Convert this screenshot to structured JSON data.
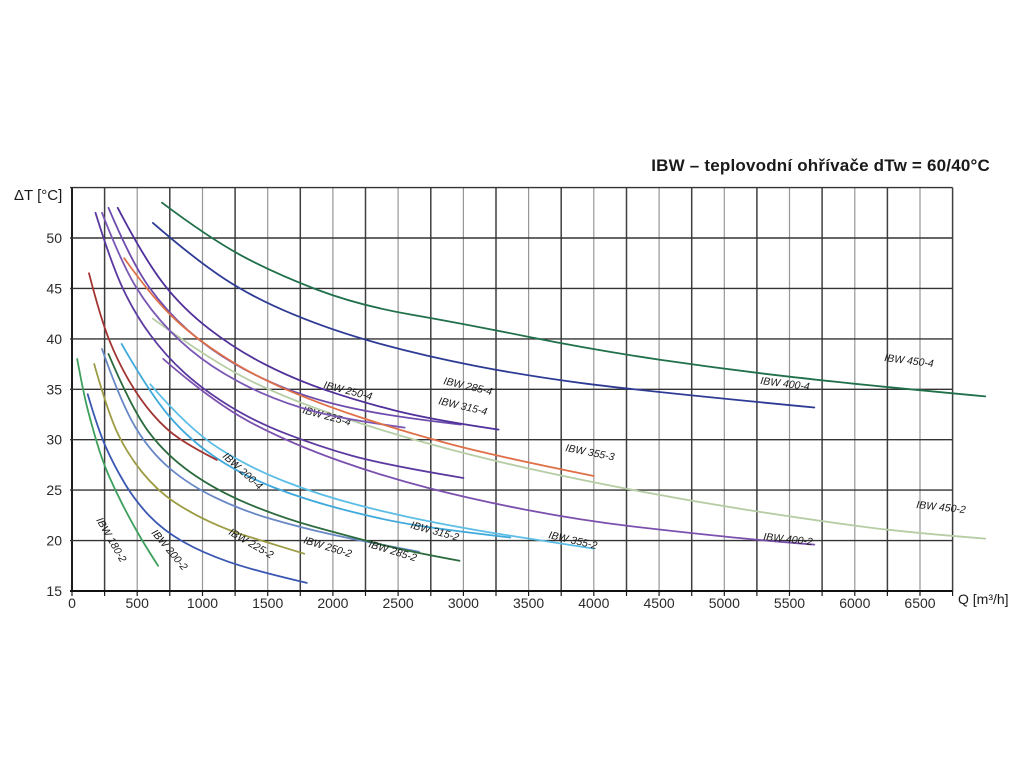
{
  "title": "IBW – teplovodní ohřívače dTw = 60/40°C",
  "y_axis_label": "ΔT [°C]",
  "x_axis_label": "Q [m³/h]",
  "chart_data": {
    "type": "line",
    "title": "IBW – teplovodní ohřívače dTw = 60/40°C",
    "xlabel": "Q [m³/h]",
    "ylabel": "ΔT [°C]",
    "xlim": [
      0,
      6750
    ],
    "ylim": [
      15,
      55
    ],
    "x_ticks": [
      0,
      500,
      1000,
      1500,
      2000,
      2500,
      3000,
      3500,
      4000,
      4500,
      5000,
      5500,
      6000,
      6500
    ],
    "y_ticks": [
      15,
      20,
      25,
      30,
      35,
      40,
      45,
      50
    ],
    "grid": {
      "on": true,
      "minor_step_x": 250,
      "step_y": 5,
      "axis_color": "#1c1c1c",
      "dark_line_color": "#3f3f3f",
      "light_line_color": "#979797"
    },
    "legend_position": "inline-labels",
    "series": [
      {
        "name": "IBW 180-2",
        "color": "#3EA05D",
        "label_pos": [
          96,
          520,
          60
        ],
        "points": [
          [
            40,
            38
          ],
          [
            90,
            34.5
          ],
          [
            150,
            31.5
          ],
          [
            230,
            28
          ],
          [
            330,
            25
          ],
          [
            450,
            22
          ],
          [
            560,
            19.5
          ],
          [
            660,
            17.5
          ]
        ]
      },
      {
        "name": "IBW 200-2",
        "color": "#3A57B2",
        "label_pos": [
          151,
          533,
          50
        ],
        "points": [
          [
            120,
            34.5
          ],
          [
            200,
            31
          ],
          [
            320,
            27.5
          ],
          [
            480,
            24
          ],
          [
            700,
            21
          ],
          [
            1000,
            18.8
          ],
          [
            1400,
            17
          ],
          [
            1800,
            15.8
          ]
        ]
      },
      {
        "name": "IBW 225-2",
        "color": "#9C9C44",
        "label_pos": [
          228,
          534,
          30
        ],
        "points": [
          [
            170,
            37.5
          ],
          [
            280,
            32.5
          ],
          [
            430,
            28.5
          ],
          [
            650,
            25
          ],
          [
            900,
            22.8
          ],
          [
            1200,
            21
          ],
          [
            1500,
            19.8
          ],
          [
            1780,
            18.7
          ]
        ]
      },
      {
        "name": "IBW 250-2",
        "color": "#6787C5",
        "label_pos": [
          303,
          543,
          17
        ],
        "points": [
          [
            230,
            39
          ],
          [
            380,
            33.5
          ],
          [
            600,
            28.8
          ],
          [
            900,
            25.5
          ],
          [
            1300,
            23
          ],
          [
            1750,
            21.3
          ],
          [
            2200,
            20
          ],
          [
            2660,
            18.9
          ]
        ]
      },
      {
        "name": "IBW 285-2",
        "color": "#2B6B3E",
        "label_pos": [
          368,
          547,
          17
        ],
        "points": [
          [
            280,
            38.5
          ],
          [
            460,
            33
          ],
          [
            720,
            28.5
          ],
          [
            1100,
            25
          ],
          [
            1600,
            22.3
          ],
          [
            2100,
            20.5
          ],
          [
            2550,
            19
          ],
          [
            2970,
            18
          ]
        ]
      },
      {
        "name": "IBW 315-2",
        "color": "#3FA9DC",
        "label_pos": [
          410,
          528,
          15
        ],
        "points": [
          [
            380,
            39.5
          ],
          [
            600,
            34.5
          ],
          [
            900,
            30
          ],
          [
            1300,
            26.5
          ],
          [
            1800,
            24
          ],
          [
            2400,
            22
          ],
          [
            2900,
            21
          ],
          [
            3360,
            20.3
          ]
        ]
      },
      {
        "name": "IBW 355-2",
        "color": "#5CBEE6",
        "label_pos": [
          548,
          538,
          13
        ],
        "points": [
          [
            600,
            35.5
          ],
          [
            900,
            31
          ],
          [
            1350,
            27.3
          ],
          [
            1900,
            24.5
          ],
          [
            2500,
            22.5
          ],
          [
            3100,
            21
          ],
          [
            3600,
            20
          ],
          [
            4000,
            19.2
          ]
        ]
      },
      {
        "name": "IBW 400-2",
        "color": "#7B50AE",
        "label_pos": [
          763,
          540,
          6
        ],
        "points": [
          [
            700,
            38
          ],
          [
            1100,
            33.5
          ],
          [
            1700,
            29.5
          ],
          [
            2400,
            26.3
          ],
          [
            3100,
            24
          ],
          [
            3900,
            22
          ],
          [
            4700,
            20.8
          ],
          [
            5300,
            20
          ],
          [
            5690,
            19.6
          ]
        ]
      },
      {
        "name": "IBW 450-2",
        "color": "#B6CDA4",
        "label_pos": [
          916,
          508,
          6
        ],
        "points": [
          [
            620,
            42
          ],
          [
            1100,
            37.5
          ],
          [
            1700,
            33.8
          ],
          [
            2400,
            30.8
          ],
          [
            3100,
            28.3
          ],
          [
            3900,
            26
          ],
          [
            4800,
            23.8
          ],
          [
            5700,
            22
          ],
          [
            6400,
            20.8
          ],
          [
            7000,
            20.2
          ]
        ]
      },
      {
        "name": "IBW 200-4",
        "color": "#A23432",
        "label_pos": [
          222,
          457,
          42
        ],
        "points": [
          [
            130,
            46.5
          ],
          [
            220,
            42
          ],
          [
            350,
            37.8
          ],
          [
            520,
            34
          ],
          [
            720,
            31
          ],
          [
            930,
            29.2
          ],
          [
            1110,
            28
          ]
        ]
      },
      {
        "name": "IBW 225-4",
        "color": "#5C3AA0",
        "label_pos": [
          302,
          413,
          15
        ],
        "points": [
          [
            180,
            52.5
          ],
          [
            300,
            47.5
          ],
          [
            480,
            42.5
          ],
          [
            720,
            38.3
          ],
          [
            1000,
            35
          ],
          [
            1400,
            31.8
          ],
          [
            1900,
            29.3
          ],
          [
            2400,
            27.5
          ],
          [
            3000,
            26.2
          ]
        ]
      },
      {
        "name": "IBW 250-4",
        "color": "#7B57B5",
        "label_pos": [
          323,
          388,
          14
        ],
        "points": [
          [
            230,
            52.5
          ],
          [
            380,
            47.5
          ],
          [
            600,
            42.8
          ],
          [
            900,
            38.8
          ],
          [
            1250,
            35.8
          ],
          [
            1650,
            33.5
          ],
          [
            2100,
            32
          ],
          [
            2550,
            31.2
          ]
        ]
      },
      {
        "name": "IBW 285-4",
        "color": "#6C4BAD",
        "label_pos": [
          443,
          384,
          13
        ],
        "points": [
          [
            280,
            53
          ],
          [
            460,
            47.5
          ],
          [
            720,
            42.8
          ],
          [
            1050,
            39
          ],
          [
            1450,
            36
          ],
          [
            1900,
            33.8
          ],
          [
            2450,
            32.3
          ],
          [
            2980,
            31.5
          ]
        ]
      },
      {
        "name": "IBW 315-4",
        "color": "#50309A",
        "label_pos": [
          438,
          404,
          13
        ],
        "points": [
          [
            350,
            53
          ],
          [
            560,
            47.8
          ],
          [
            850,
            43
          ],
          [
            1250,
            39
          ],
          [
            1700,
            36
          ],
          [
            2200,
            33.8
          ],
          [
            2750,
            32
          ],
          [
            3270,
            31
          ]
        ]
      },
      {
        "name": "IBW 355-3",
        "color": "#DF7048",
        "label_pos": [
          565,
          451,
          11
        ],
        "points": [
          [
            400,
            48
          ],
          [
            620,
            44
          ],
          [
            950,
            40
          ],
          [
            1400,
            36.3
          ],
          [
            1950,
            33.3
          ],
          [
            2550,
            30.8
          ],
          [
            3200,
            28.5
          ],
          [
            4000,
            26.4
          ]
        ]
      },
      {
        "name": "IBW 400-4",
        "color": "#2E3B95",
        "label_pos": [
          760,
          384,
          7
        ],
        "points": [
          [
            620,
            51.5
          ],
          [
            950,
            47.8
          ],
          [
            1400,
            44
          ],
          [
            2000,
            40.8
          ],
          [
            2700,
            38.3
          ],
          [
            3500,
            36.3
          ],
          [
            4400,
            34.8
          ],
          [
            5690,
            33.2
          ]
        ]
      },
      {
        "name": "IBW 450-4",
        "color": "#20704A",
        "label_pos": [
          884,
          361,
          7
        ],
        "points": [
          [
            690,
            53.5
          ],
          [
            1050,
            50
          ],
          [
            1550,
            46.5
          ],
          [
            2200,
            43.3
          ],
          [
            3000,
            41.5
          ],
          [
            4000,
            38.9
          ],
          [
            5000,
            37
          ],
          [
            6000,
            35.5
          ],
          [
            7000,
            34.3
          ]
        ]
      }
    ]
  }
}
